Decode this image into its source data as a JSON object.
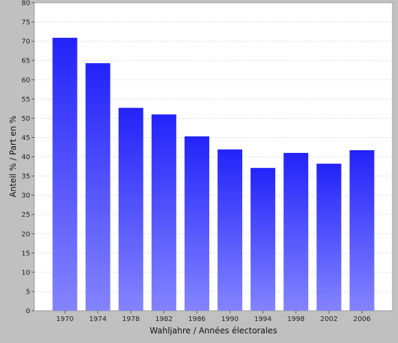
{
  "chart_data": {
    "type": "bar",
    "categories": [
      "1970",
      "1974",
      "1978",
      "1982",
      "1986",
      "1990",
      "1994",
      "1998",
      "2002",
      "2006"
    ],
    "values": [
      70.9,
      64.3,
      52.7,
      51.0,
      45.3,
      41.9,
      37.1,
      41.0,
      38.2,
      41.7
    ],
    "title": "",
    "xlabel": "Wahljahre / Années électorales",
    "ylabel": "Anteil % / Part en %",
    "ylim": [
      0,
      80
    ],
    "yticks": [
      0,
      5,
      10,
      15,
      20,
      25,
      30,
      35,
      40,
      45,
      50,
      55,
      60,
      65,
      70,
      75,
      80
    ],
    "grid": true,
    "legend": "none",
    "colors": {
      "bar_top": "#2323fa",
      "bar_bottom": "#8484ff",
      "plot_background": "#ffffff",
      "page_background": "#c0c0c0",
      "grid": "#d8d8d8"
    }
  }
}
